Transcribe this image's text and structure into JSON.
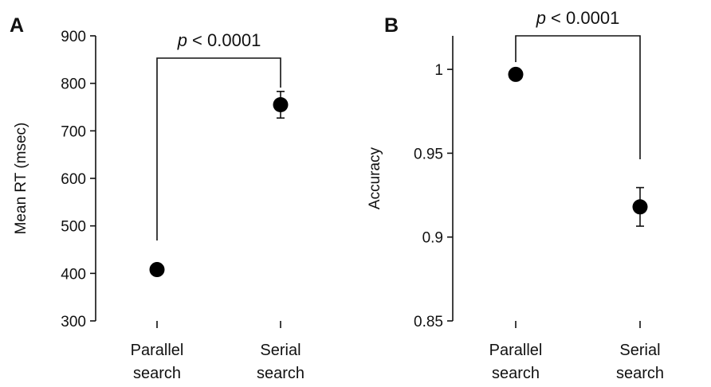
{
  "chart_data": [
    {
      "panel_label": "A",
      "type": "scatter",
      "categories": [
        [
          "Parallel",
          "search"
        ],
        [
          "Serial",
          "search"
        ]
      ],
      "ylabel": "Mean RT (msec)",
      "ylim": [
        300,
        900
      ],
      "yticks": [
        "300",
        "400",
        "500",
        "600",
        "700",
        "800",
        "900"
      ],
      "grid": false,
      "series": [
        {
          "values": [
            408,
            755
          ],
          "errors": [
            0,
            28
          ]
        }
      ],
      "annotation": {
        "p_italic": "p",
        "p_rest": " < 0.0001"
      }
    },
    {
      "panel_label": "B",
      "type": "scatter",
      "categories": [
        [
          "Parallel",
          "search"
        ],
        [
          "Serial",
          "search"
        ]
      ],
      "ylabel": "Accuracy",
      "ylim": [
        0.85,
        1.02
      ],
      "yticks": [
        "0.85",
        "0.9",
        "0.95",
        "1"
      ],
      "grid": false,
      "series": [
        {
          "values": [
            0.997,
            0.918
          ],
          "errors": [
            0,
            0.0115
          ]
        }
      ],
      "annotation": {
        "p_italic": "p",
        "p_rest": " < 0.0001"
      }
    }
  ]
}
